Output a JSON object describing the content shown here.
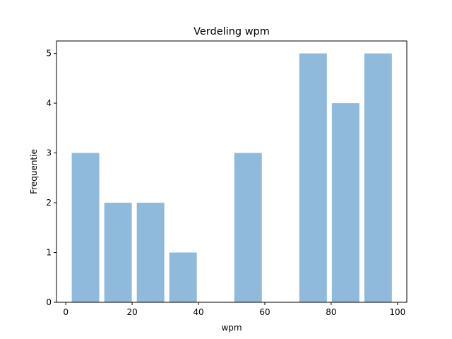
{
  "chart_data": {
    "type": "bar",
    "title": "Verdeling wpm",
    "xlabel": "wpm",
    "ylabel": "Frequentie",
    "xlim": [
      -2.8,
      102.8
    ],
    "ylim": [
      0,
      5.25
    ],
    "xticks": [
      0,
      20,
      40,
      60,
      80,
      100
    ],
    "yticks": [
      0,
      1,
      2,
      3,
      4,
      5
    ],
    "bar_color": "#8fbadb",
    "grid": false,
    "bins": [
      {
        "x0": 1.8,
        "x1": 10.1,
        "value": 3
      },
      {
        "x0": 11.6,
        "x1": 19.9,
        "value": 2
      },
      {
        "x0": 21.4,
        "x1": 29.7,
        "value": 2
      },
      {
        "x0": 31.2,
        "x1": 39.5,
        "value": 1
      },
      {
        "x0": 41.0,
        "x1": 49.3,
        "value": 0
      },
      {
        "x0": 50.8,
        "x1": 59.1,
        "value": 3
      },
      {
        "x0": 60.6,
        "x1": 68.9,
        "value": 0
      },
      {
        "x0": 70.4,
        "x1": 78.7,
        "value": 5
      },
      {
        "x0": 80.2,
        "x1": 88.5,
        "value": 4
      },
      {
        "x0": 90.0,
        "x1": 98.3,
        "value": 5
      }
    ]
  }
}
